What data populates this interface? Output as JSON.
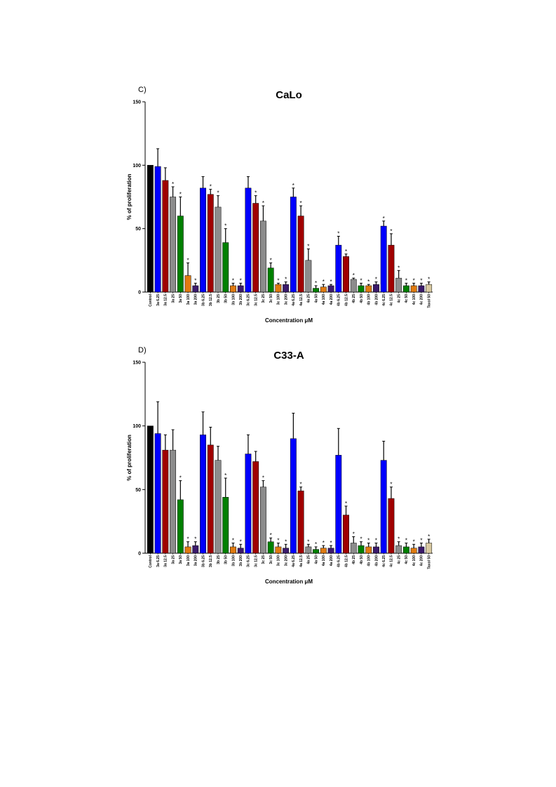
{
  "chart_data": [
    {
      "type": "bar",
      "panel_label": "C)",
      "title": "CaLo",
      "ylabel": "% of proliferation",
      "xlabel": "Concentration μM",
      "categories": [
        "Control",
        "3a 6.25",
        "3a 12.5",
        "3a 25",
        "3a 50",
        "3a 100",
        "3a 200",
        "3b 6.25",
        "3b 12.5",
        "3b 25",
        "3b 50",
        "3b 100",
        "3b 200",
        "3c 6.25",
        "3c 12.5",
        "3c 25",
        "3c 50",
        "3c 100",
        "3c 200",
        "4a 6.25",
        "4a 12.5",
        "4a 25",
        "4a 50",
        "4a 100",
        "4a 200",
        "4b 6.25",
        "4b 12.5",
        "4b 25",
        "4b 50",
        "4b 100",
        "4b 200",
        "4c 6.25",
        "4c 12.5",
        "4c 25",
        "4c 50",
        "4c 100",
        "4c 200",
        "Taxol 50"
      ],
      "values": [
        100,
        99,
        88,
        75,
        60,
        13,
        5,
        82,
        77,
        67,
        39,
        5,
        5,
        82,
        70,
        56,
        19,
        6,
        6,
        75,
        60,
        25,
        3,
        4,
        5,
        37,
        28,
        10,
        5,
        5,
        6,
        52,
        37,
        11,
        5,
        5,
        5,
        6
      ],
      "errors": [
        0,
        14,
        10,
        8,
        15,
        10,
        2,
        9,
        4,
        9,
        11,
        2,
        2,
        9,
        6,
        12,
        4,
        1,
        2,
        7,
        8,
        9,
        2,
        2,
        1,
        7,
        2,
        1,
        2,
        1,
        2,
        4,
        9,
        6,
        2,
        2,
        2,
        2
      ],
      "colors": [
        "#000000",
        "#0000ff",
        "#a00000",
        "#8c8c8c",
        "#008000",
        "#e07a10",
        "#3b1a6b",
        "#0000ff",
        "#a00000",
        "#8c8c8c",
        "#008000",
        "#e07a10",
        "#3b1a6b",
        "#0000ff",
        "#a00000",
        "#8c8c8c",
        "#008000",
        "#e07a10",
        "#3b1a6b",
        "#0000ff",
        "#a00000",
        "#8c8c8c",
        "#008000",
        "#e07a10",
        "#3b1a6b",
        "#0000ff",
        "#a00000",
        "#8c8c8c",
        "#008000",
        "#e07a10",
        "#3b1a6b",
        "#0000ff",
        "#a00000",
        "#8c8c8c",
        "#008000",
        "#e07a10",
        "#3b1a6b",
        "#d8c9a0"
      ],
      "marker": "*",
      "significant": [
        false,
        false,
        false,
        true,
        true,
        true,
        true,
        false,
        true,
        true,
        true,
        true,
        true,
        false,
        true,
        true,
        true,
        true,
        true,
        true,
        true,
        true,
        true,
        true,
        true,
        true,
        true,
        true,
        true,
        true,
        true,
        true,
        true,
        true,
        true,
        true,
        true,
        true
      ],
      "ylim": [
        0,
        150
      ],
      "yticks": [
        0,
        50,
        100,
        150
      ]
    },
    {
      "type": "bar",
      "panel_label": "D)",
      "title": "C33-A",
      "ylabel": "% of proliferation",
      "xlabel": "Concentration μM",
      "categories": [
        "Control",
        "3a 6.25",
        "3a 12.5",
        "3a 25",
        "3a 50",
        "3a 100",
        "3a 200",
        "3b 6.25",
        "3b 12.5",
        "3b 25",
        "3b 50",
        "3b 100",
        "3b 200",
        "3c 6.25",
        "3c 12.5",
        "3c 25",
        "3c 50",
        "3c 100",
        "3c 200",
        "4a 6.25",
        "4a 12.5",
        "4a 25",
        "4a 50",
        "4a 100",
        "4a 200",
        "4b 6.25",
        "4b 12.5",
        "4b 25",
        "4b 50",
        "4b 100",
        "4b 200",
        "4c 6.25",
        "4c 12.5",
        "4c 25",
        "4c 50",
        "4c 100",
        "4c 200",
        "Taxol 50"
      ],
      "values": [
        100,
        94,
        81,
        81,
        42,
        5,
        6,
        93,
        85,
        73,
        44,
        5,
        4,
        78,
        72,
        52,
        9,
        5,
        4,
        90,
        49,
        5,
        3,
        4,
        4,
        77,
        30,
        8,
        6,
        5,
        5,
        73,
        43,
        6,
        5,
        4,
        5,
        8
      ],
      "errors": [
        0,
        25,
        12,
        16,
        15,
        4,
        3,
        18,
        14,
        11,
        15,
        3,
        3,
        15,
        8,
        5,
        3,
        3,
        3,
        20,
        3,
        2,
        2,
        2,
        2,
        21,
        7,
        5,
        3,
        3,
        3,
        15,
        9,
        3,
        3,
        3,
        3,
        3
      ],
      "colors": [
        "#000000",
        "#0000ff",
        "#a00000",
        "#8c8c8c",
        "#008000",
        "#e07a10",
        "#3b1a6b",
        "#0000ff",
        "#a00000",
        "#8c8c8c",
        "#008000",
        "#e07a10",
        "#3b1a6b",
        "#0000ff",
        "#a00000",
        "#8c8c8c",
        "#008000",
        "#e07a10",
        "#3b1a6b",
        "#0000ff",
        "#a00000",
        "#8c8c8c",
        "#008000",
        "#e07a10",
        "#3b1a6b",
        "#0000ff",
        "#a00000",
        "#8c8c8c",
        "#008000",
        "#e07a10",
        "#3b1a6b",
        "#0000ff",
        "#a00000",
        "#8c8c8c",
        "#008000",
        "#e07a10",
        "#3b1a6b",
        "#d8c9a0"
      ],
      "marker": "*",
      "significant": [
        false,
        false,
        false,
        false,
        true,
        true,
        true,
        false,
        false,
        false,
        true,
        true,
        true,
        false,
        false,
        true,
        true,
        true,
        true,
        false,
        true,
        true,
        true,
        true,
        true,
        false,
        true,
        true,
        true,
        true,
        true,
        false,
        true,
        true,
        true,
        true,
        true,
        true
      ],
      "ylim": [
        0,
        150
      ],
      "yticks": [
        0,
        50,
        100,
        150
      ]
    }
  ]
}
